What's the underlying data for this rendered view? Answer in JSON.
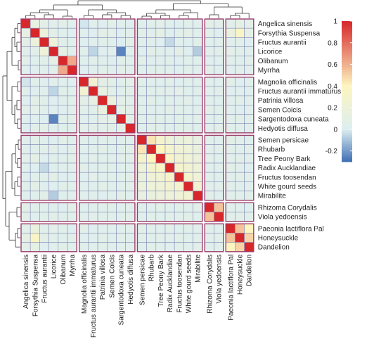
{
  "chart_data": {
    "type": "heatmap",
    "title": "",
    "labels": [
      "Angelica sinensis",
      "Forsythia Suspensa",
      "Fructus aurantii",
      "Licorice",
      "Olibanum",
      "Myrrha",
      "Magnolia officinalis",
      "Fructus aurantii immaturus",
      "Patrinia villosa",
      "Semen Coicis",
      "Sargentodoxa cuneata",
      "Hedyotis diffusa",
      "Semen persicae",
      "Rhubarb",
      "Tree Peony Bark",
      "Radix Aucklandiae",
      "Fructus toosendan",
      "White gourd seeds",
      "Mirabilite",
      "Rhizoma Corydalis",
      "Viola yedoensis",
      "Paeonia lactiflora Pal",
      "Honeysuckle",
      "Dandelion"
    ],
    "clusters": [
      [
        "Angelica sinensis",
        "Forsythia Suspensa",
        "Fructus aurantii",
        "Licorice",
        "Olibanum",
        "Myrrha"
      ],
      [
        "Magnolia officinalis",
        "Fructus aurantii immaturus",
        "Patrinia villosa",
        "Semen Coicis",
        "Sargentodoxa cuneata",
        "Hedyotis diffusa"
      ],
      [
        "Semen persicae",
        "Rhubarb",
        "Tree Peony Bark",
        "Radix Aucklandiae",
        "Fructus toosendan",
        "White gourd seeds",
        "Mirabilite"
      ],
      [
        "Rhizoma Corydalis",
        "Viola yedoensis"
      ],
      [
        "Paeonia lactiflora Pal",
        "Honeysuckle",
        "Dandelion"
      ]
    ],
    "color_scale": {
      "ticks": [
        -0.2,
        0,
        0.2,
        0.4,
        0.6,
        0.8,
        1
      ],
      "tick_labels": [
        "-0.2",
        "0",
        "0.2",
        "0.4",
        "0.6",
        "0.8",
        "1"
      ],
      "range": [
        -0.3,
        1
      ],
      "colors": {
        "low": "#3f6fb4",
        "zero": "#ddeef0",
        "mid": "#fdf5c0",
        "high": "#d7272b"
      }
    },
    "legend_position": "right",
    "dendrogram": "top-and-left",
    "values": [
      [
        1.0,
        0.12,
        0.08,
        0.05,
        0.06,
        0.04,
        -0.02,
        0.05,
        0.02,
        0.06,
        0.03,
        0.01,
        0.04,
        0.05,
        0.07,
        0.03,
        0.02,
        0.05,
        0.04,
        0.08,
        0.06,
        0.05,
        0.09,
        0.07
      ],
      [
        0.12,
        1.0,
        0.18,
        0.06,
        0.03,
        0.02,
        0.04,
        0.02,
        0.06,
        0.07,
        0.02,
        0.05,
        0.06,
        0.04,
        0.09,
        0.02,
        0.05,
        0.08,
        0.03,
        0.05,
        0.02,
        0.15,
        0.35,
        0.1
      ],
      [
        0.08,
        0.18,
        1.0,
        0.2,
        0.05,
        0.03,
        0.02,
        0.04,
        0.05,
        0.03,
        0.0,
        0.06,
        0.03,
        0.05,
        0.02,
        -0.05,
        0.04,
        0.02,
        0.06,
        0.03,
        0.05,
        0.04,
        0.06,
        0.02
      ],
      [
        0.05,
        0.06,
        0.2,
        1.0,
        0.1,
        0.05,
        0.05,
        -0.06,
        0.02,
        0.04,
        -0.25,
        0.03,
        0.02,
        0.06,
        0.05,
        0.03,
        0.08,
        0.02,
        -0.08,
        0.04,
        0.06,
        0.07,
        0.05,
        0.04
      ],
      [
        0.06,
        0.03,
        0.05,
        0.1,
        1.0,
        0.62,
        0.03,
        0.05,
        0.04,
        0.02,
        0.05,
        0.03,
        0.06,
        0.02,
        0.04,
        0.05,
        0.02,
        0.05,
        0.03,
        0.02,
        0.04,
        0.05,
        0.03,
        0.06
      ],
      [
        0.04,
        0.02,
        0.03,
        0.05,
        0.62,
        1.0,
        0.02,
        0.03,
        0.05,
        0.04,
        0.06,
        0.04,
        0.03,
        0.05,
        0.06,
        0.04,
        0.02,
        0.05,
        0.04,
        0.06,
        0.03,
        0.02,
        0.05,
        0.04
      ],
      [
        -0.02,
        0.04,
        0.02,
        0.05,
        0.03,
        0.02,
        1.0,
        0.25,
        0.08,
        0.06,
        0.04,
        0.07,
        0.05,
        0.04,
        0.03,
        0.06,
        0.02,
        0.04,
        0.05,
        0.03,
        0.04,
        0.06,
        0.02,
        0.05
      ],
      [
        0.05,
        0.02,
        0.04,
        -0.06,
        0.05,
        0.03,
        0.25,
        1.0,
        0.12,
        0.05,
        0.04,
        0.06,
        0.03,
        0.05,
        0.06,
        0.04,
        0.07,
        0.03,
        0.05,
        0.04,
        0.06,
        0.02,
        0.04,
        0.03
      ],
      [
        0.02,
        0.06,
        0.05,
        0.02,
        0.04,
        0.05,
        0.08,
        0.12,
        1.0,
        0.15,
        0.07,
        0.05,
        0.04,
        0.06,
        0.03,
        0.05,
        0.04,
        0.06,
        0.02,
        0.05,
        0.03,
        0.04,
        0.06,
        0.05
      ],
      [
        0.06,
        0.07,
        0.03,
        0.04,
        0.02,
        0.04,
        0.06,
        0.05,
        0.15,
        1.0,
        0.1,
        0.06,
        0.05,
        0.03,
        0.04,
        0.06,
        0.05,
        0.03,
        0.04,
        0.06,
        0.05,
        0.03,
        0.02,
        0.04
      ],
      [
        0.03,
        0.02,
        0.0,
        -0.25,
        0.05,
        0.06,
        0.04,
        0.04,
        0.07,
        0.1,
        1.0,
        0.08,
        0.04,
        0.05,
        0.06,
        0.03,
        0.05,
        0.04,
        0.06,
        0.03,
        0.05,
        0.04,
        0.06,
        0.05
      ],
      [
        0.01,
        0.05,
        0.06,
        0.03,
        0.03,
        0.04,
        0.07,
        0.06,
        0.05,
        0.06,
        0.08,
        1.0,
        0.03,
        0.06,
        0.05,
        0.04,
        0.06,
        0.05,
        0.03,
        0.04,
        0.06,
        0.05,
        0.03,
        0.04
      ],
      [
        0.04,
        0.06,
        0.03,
        0.02,
        0.06,
        0.03,
        0.05,
        0.03,
        0.04,
        0.05,
        0.04,
        0.03,
        1.0,
        0.45,
        0.3,
        0.2,
        0.15,
        0.18,
        0.12,
        0.05,
        0.04,
        0.06,
        0.05,
        0.03
      ],
      [
        0.05,
        0.04,
        0.05,
        0.06,
        0.02,
        0.05,
        0.04,
        0.05,
        0.06,
        0.03,
        0.05,
        0.06,
        0.45,
        1.0,
        0.4,
        0.28,
        0.22,
        0.2,
        0.15,
        0.04,
        0.06,
        0.05,
        0.03,
        0.06
      ],
      [
        0.07,
        0.09,
        0.02,
        0.05,
        0.04,
        0.06,
        0.03,
        0.06,
        0.03,
        0.04,
        0.06,
        0.05,
        0.3,
        0.4,
        1.0,
        0.35,
        0.25,
        0.22,
        0.18,
        0.06,
        0.03,
        0.04,
        0.06,
        0.05
      ],
      [
        0.03,
        0.02,
        -0.05,
        0.03,
        0.05,
        0.04,
        0.06,
        0.04,
        0.05,
        0.06,
        0.03,
        0.04,
        0.2,
        0.28,
        0.35,
        1.0,
        0.3,
        0.25,
        0.2,
        0.03,
        0.05,
        0.06,
        0.04,
        0.02
      ],
      [
        0.02,
        0.05,
        0.04,
        0.08,
        0.02,
        0.02,
        0.02,
        0.07,
        0.04,
        0.05,
        0.05,
        0.06,
        0.15,
        0.22,
        0.25,
        0.3,
        1.0,
        0.28,
        0.22,
        0.05,
        0.04,
        0.03,
        0.06,
        0.05
      ],
      [
        0.05,
        0.08,
        0.02,
        0.02,
        0.05,
        0.05,
        0.04,
        0.03,
        0.06,
        0.03,
        0.04,
        0.05,
        0.18,
        0.2,
        0.22,
        0.25,
        0.28,
        1.0,
        0.25,
        0.04,
        0.06,
        0.05,
        0.03,
        0.04
      ],
      [
        0.04,
        0.03,
        0.06,
        -0.08,
        0.03,
        0.04,
        0.05,
        0.05,
        0.02,
        0.04,
        0.06,
        0.03,
        0.12,
        0.15,
        0.18,
        0.2,
        0.22,
        0.25,
        1.0,
        0.06,
        0.03,
        0.04,
        0.05,
        0.06
      ],
      [
        0.08,
        0.05,
        0.03,
        0.04,
        0.02,
        0.06,
        0.03,
        0.04,
        0.05,
        0.06,
        0.03,
        0.04,
        0.05,
        0.04,
        0.06,
        0.03,
        0.05,
        0.04,
        0.06,
        1.0,
        0.55,
        0.05,
        0.04,
        0.03
      ],
      [
        0.06,
        0.02,
        0.05,
        0.06,
        0.04,
        0.03,
        0.04,
        0.06,
        0.03,
        0.05,
        0.05,
        0.06,
        0.04,
        0.06,
        0.03,
        0.05,
        0.04,
        0.06,
        0.03,
        0.55,
        1.0,
        0.04,
        0.06,
        0.05
      ],
      [
        0.05,
        0.15,
        0.04,
        0.07,
        0.05,
        0.02,
        0.06,
        0.02,
        0.04,
        0.03,
        0.04,
        0.05,
        0.06,
        0.05,
        0.04,
        0.06,
        0.03,
        0.05,
        0.04,
        0.05,
        0.04,
        1.0,
        0.55,
        0.4
      ],
      [
        0.09,
        0.35,
        0.06,
        0.05,
        0.03,
        0.05,
        0.02,
        0.04,
        0.06,
        0.02,
        0.06,
        0.03,
        0.05,
        0.03,
        0.06,
        0.04,
        0.06,
        0.03,
        0.05,
        0.04,
        0.06,
        0.55,
        1.0,
        0.5
      ],
      [
        0.07,
        0.1,
        0.02,
        0.04,
        0.06,
        0.04,
        0.05,
        0.03,
        0.05,
        0.04,
        0.05,
        0.04,
        0.03,
        0.06,
        0.05,
        0.02,
        0.05,
        0.04,
        0.06,
        0.03,
        0.05,
        0.4,
        0.5,
        1.0
      ]
    ]
  }
}
